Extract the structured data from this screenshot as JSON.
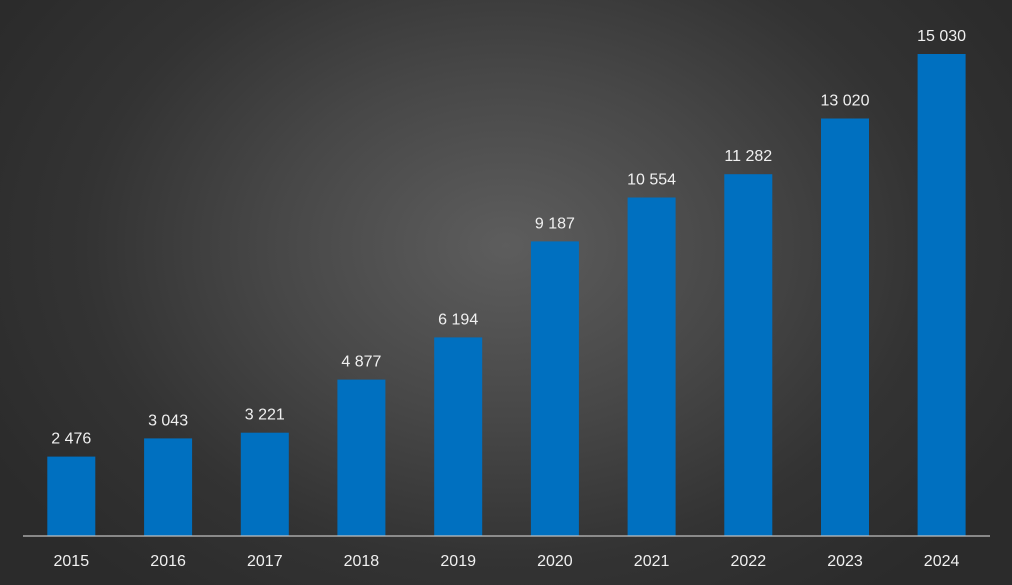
{
  "chart_data": {
    "type": "bar",
    "categories": [
      "2015",
      "2016",
      "2017",
      "2018",
      "2019",
      "2020",
      "2021",
      "2022",
      "2023",
      "2024"
    ],
    "values": [
      2476,
      3043,
      3221,
      4877,
      6194,
      9187,
      10554,
      11282,
      13020,
      15030
    ],
    "data_labels": [
      "2 476",
      "3 043",
      "3 221",
      "4 877",
      "6 194",
      "9 187",
      "10 554",
      "11 282",
      "13 020",
      "15 030"
    ],
    "title": "",
    "xlabel": "",
    "ylabel": "",
    "ylim": [
      0,
      15030
    ],
    "grid": false,
    "legend": "none",
    "colors": {
      "bar": "#0070c0",
      "axis": "#bfbfbf",
      "text": "#f0f0f0"
    }
  }
}
